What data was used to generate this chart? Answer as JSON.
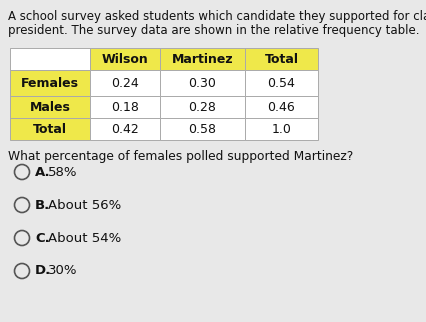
{
  "title_line1": "A school survey asked students which candidate they supported for class",
  "title_line2": "president. The survey data are shown in the relative frequency table.",
  "col_headers": [
    "",
    "Wilson",
    "Martinez",
    "Total"
  ],
  "row_labels": [
    "Females",
    "Males",
    "Total"
  ],
  "table_data": [
    [
      "0.24",
      "0.30",
      "0.54"
    ],
    [
      "0.18",
      "0.28",
      "0.46"
    ],
    [
      "0.42",
      "0.58",
      "1.0"
    ]
  ],
  "question": "What percentage of females polled supported Martinez?",
  "choice_letters": [
    "A.",
    "B.",
    "C.",
    "D."
  ],
  "choice_texts": [
    "58%",
    "About 56%",
    "About 54%",
    "30%"
  ],
  "header_bg": "#efe84a",
  "row_label_bg": "#efe84a",
  "cell_bg": "#ffffff",
  "table_border": "#aaaaaa",
  "bg_color": "#e8e8e8",
  "text_color": "#111111",
  "title_fontsize": 8.5,
  "table_fontsize": 9.0,
  "question_fontsize": 8.8,
  "choice_fontsize": 9.5
}
